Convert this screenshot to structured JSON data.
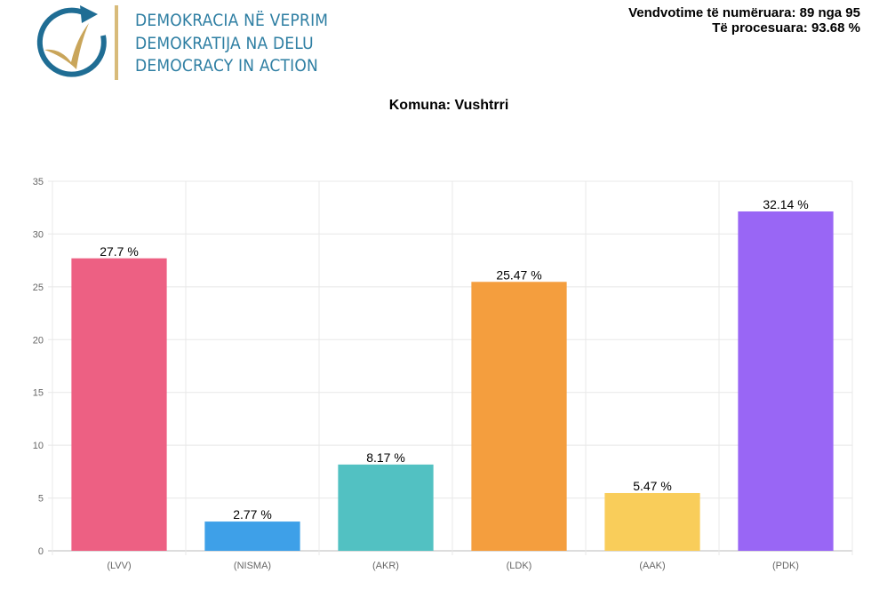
{
  "header": {
    "logo_lines": [
      "DEMOKRACIA NË VEPRIM",
      "DEMOKRATIJA NA DELU",
      "DEMOCRACY IN ACTION"
    ],
    "stations_counted": "Vendvotime të numëruara: 89 nga 95",
    "processed": "Të procesuara: 93.68 %"
  },
  "chart_title": "Komuna: Vushtrri",
  "chart_data": {
    "type": "bar",
    "title": "Komuna: Vushtrri",
    "categories": [
      "(LVV)",
      "(NISMA)",
      "(AKR)",
      "(LDK)",
      "(AAK)",
      "(PDK)"
    ],
    "values": [
      27.7,
      2.77,
      8.17,
      25.47,
      5.47,
      32.14
    ],
    "data_labels": [
      "27.7 %",
      "2.77 %",
      "8.17 %",
      "25.47 %",
      "5.47 %",
      "32.14 %"
    ],
    "colors": [
      "#ed6083",
      "#3ea0e8",
      "#52c1c2",
      "#f49e3e",
      "#f9cd5a",
      "#9966f5"
    ],
    "ylim": [
      0,
      35
    ],
    "yticks": [
      0,
      5,
      10,
      15,
      20,
      25,
      30,
      35
    ],
    "grid": true
  }
}
